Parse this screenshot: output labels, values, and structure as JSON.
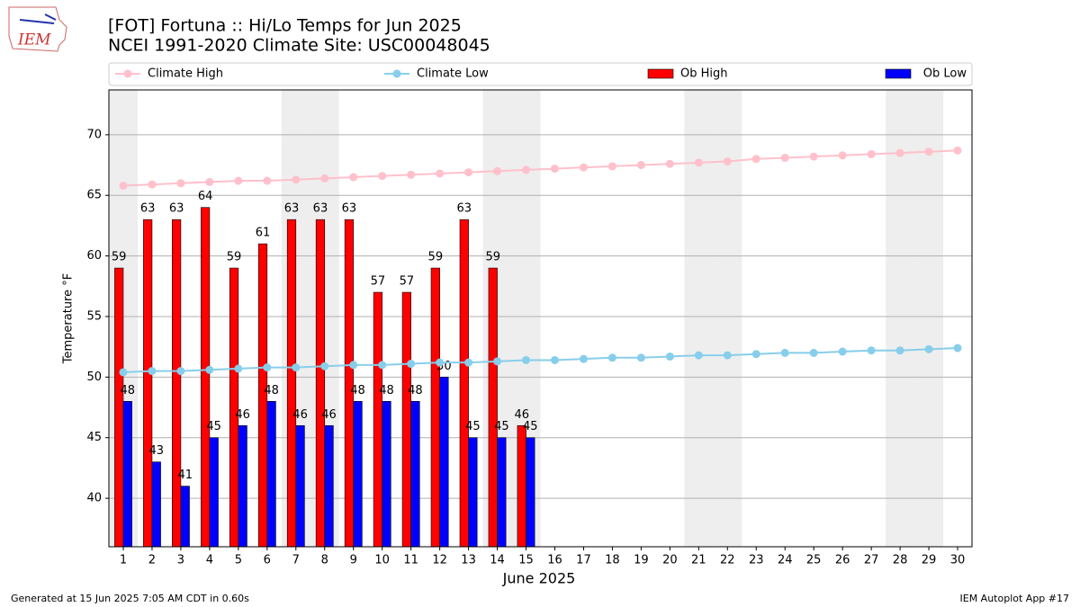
{
  "chart_data": {
    "type": "bar",
    "title": "[FOT] Fortuna :: Hi/Lo Temps for Jun 2025",
    "subtitle": "NCEI 1991-2020 Climate Site: USC00048045",
    "xlabel": "June 2025",
    "ylabel": "Temperature °F",
    "x": [
      1,
      2,
      3,
      4,
      5,
      6,
      7,
      8,
      9,
      10,
      11,
      12,
      13,
      14,
      15,
      16,
      17,
      18,
      19,
      20,
      21,
      22,
      23,
      24,
      25,
      26,
      27,
      28,
      29,
      30
    ],
    "xlim": [
      0.5,
      30.5
    ],
    "xticks": [
      1,
      2,
      3,
      4,
      5,
      6,
      7,
      8,
      9,
      10,
      11,
      12,
      13,
      14,
      15,
      16,
      17,
      18,
      19,
      20,
      21,
      22,
      23,
      24,
      25,
      26,
      27,
      28,
      29,
      30
    ],
    "ylim": [
      36,
      73.7
    ],
    "yticks": [
      40,
      45,
      50,
      55,
      60,
      65,
      70
    ],
    "grid": true,
    "legend": "top",
    "shaded_x": [
      1,
      7,
      8,
      14,
      15,
      21,
      22,
      28,
      29
    ],
    "series": [
      {
        "name": "Climate High",
        "type": "line",
        "color": "#ffc0cb",
        "values": [
          65.8,
          65.9,
          66.0,
          66.1,
          66.2,
          66.2,
          66.3,
          66.4,
          66.5,
          66.6,
          66.7,
          66.8,
          66.9,
          67.0,
          67.1,
          67.2,
          67.3,
          67.4,
          67.5,
          67.6,
          67.7,
          67.8,
          68.0,
          68.1,
          68.2,
          68.3,
          68.4,
          68.5,
          68.6,
          68.7
        ]
      },
      {
        "name": "Climate Low",
        "type": "line",
        "color": "#87ceeb",
        "values": [
          50.4,
          50.5,
          50.5,
          50.6,
          50.7,
          50.8,
          50.8,
          50.9,
          51.0,
          51.0,
          51.1,
          51.2,
          51.2,
          51.3,
          51.4,
          51.4,
          51.5,
          51.6,
          51.6,
          51.7,
          51.8,
          51.8,
          51.9,
          52.0,
          52.0,
          52.1,
          52.2,
          52.2,
          52.3,
          52.4
        ]
      },
      {
        "name": "Ob High",
        "type": "bar",
        "color": "#ff0000",
        "values": [
          59,
          63,
          63,
          64,
          59,
          61,
          63,
          63,
          63,
          57,
          57,
          59,
          63,
          59,
          46,
          null,
          null,
          null,
          null,
          null,
          null,
          null,
          null,
          null,
          null,
          null,
          null,
          null,
          null,
          null
        ]
      },
      {
        "name": "Ob Low",
        "type": "bar",
        "color": "#0000ff",
        "values": [
          48,
          43,
          41,
          45,
          46,
          48,
          46,
          46,
          48,
          48,
          48,
          50,
          45,
          45,
          45,
          null,
          null,
          null,
          null,
          null,
          null,
          null,
          null,
          null,
          null,
          null,
          null,
          null,
          null,
          null
        ]
      }
    ]
  },
  "logo": "IEM",
  "footer": {
    "left": "Generated at 15 Jun 2025 7:05 AM CDT in 0.60s",
    "right": "IEM Autoplot App #17"
  }
}
